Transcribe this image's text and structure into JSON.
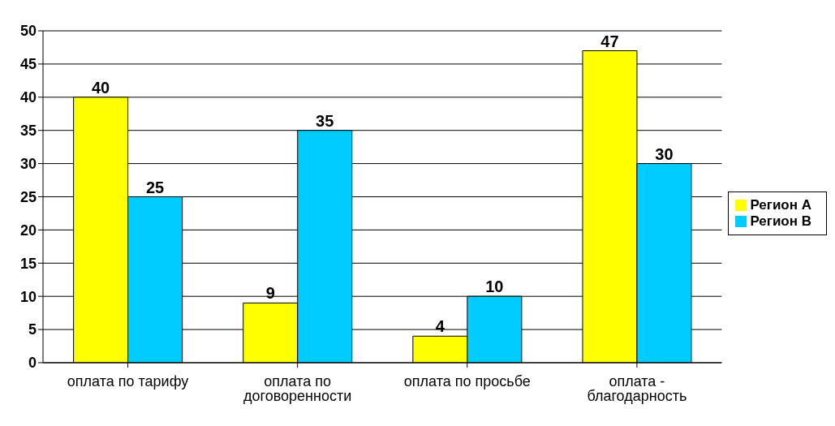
{
  "chart_data": {
    "type": "bar",
    "categories": [
      "оплата по тарифу",
      "оплата по договоренности",
      "оплата по просьбе",
      "оплата - благодарность"
    ],
    "series": [
      {
        "name": "Регион А",
        "color": "#ffff00",
        "values": [
          40,
          9,
          4,
          47
        ]
      },
      {
        "name": "Регион В",
        "color": "#00ccff",
        "values": [
          25,
          35,
          10,
          30
        ]
      }
    ],
    "ylim": [
      0,
      50
    ],
    "yticks": [
      0,
      5,
      10,
      15,
      20,
      25,
      30,
      35,
      40,
      45,
      50
    ],
    "grid": "y",
    "legend": "right",
    "data_labels": true
  }
}
